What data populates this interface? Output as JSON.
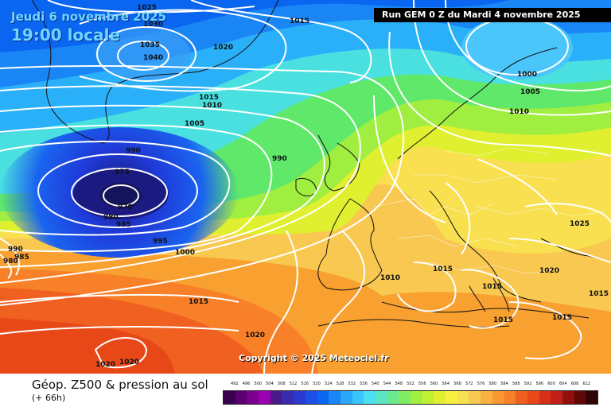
{
  "header": {
    "date": "Jeudi 6 novembre 2025",
    "time": "19:00 locale",
    "run": "Run GEM 0 Z du Mardi 4 novembre 2025"
  },
  "map": {
    "pressure_labels": [
      "1025",
      "1030",
      "1035",
      "1040",
      "1015",
      "1020",
      "1000",
      "1005",
      "1010",
      "1015",
      "1010",
      "1005",
      "990",
      "975",
      "970",
      "980",
      "985",
      "990",
      "995",
      "1000",
      "990",
      "985",
      "980",
      "1015",
      "1015",
      "1010",
      "1015",
      "1020",
      "1015",
      "1025",
      "1015",
      "1015",
      "1020",
      "1020",
      "1020"
    ],
    "copyright": "Copyright © 2025 Meteociel.fr"
  },
  "footer": {
    "title": "Géop. Z500 & pression au sol",
    "subtitle": "(+ 66h)"
  },
  "legend": {
    "labels": [
      "492",
      "496",
      "500",
      "504",
      "508",
      "512",
      "516",
      "520",
      "524",
      "528",
      "532",
      "536",
      "540",
      "544",
      "548",
      "552",
      "556",
      "560",
      "564",
      "568",
      "572",
      "576",
      "580",
      "584",
      "588",
      "592",
      "596",
      "600",
      "604",
      "608",
      "612"
    ],
    "colors": [
      "#3a0050",
      "#5a0070",
      "#7c0090",
      "#9a00b0",
      "#4a1a8a",
      "#3a2ab0",
      "#2a3ad0",
      "#1a50e6",
      "#0a66f0",
      "#1a86f6",
      "#2aa6fa",
      "#3ac6fc",
      "#4ae0f0",
      "#5ae6c0",
      "#6aea90",
      "#80ec60",
      "#a0ee40",
      "#c0f030",
      "#e0f030",
      "#f8f040",
      "#f8e050",
      "#f8c850",
      "#f8b040",
      "#f89830",
      "#f88028",
      "#f06020",
      "#e84818",
      "#d83018",
      "#c02018",
      "#901010",
      "#600808",
      "#300404"
    ]
  }
}
